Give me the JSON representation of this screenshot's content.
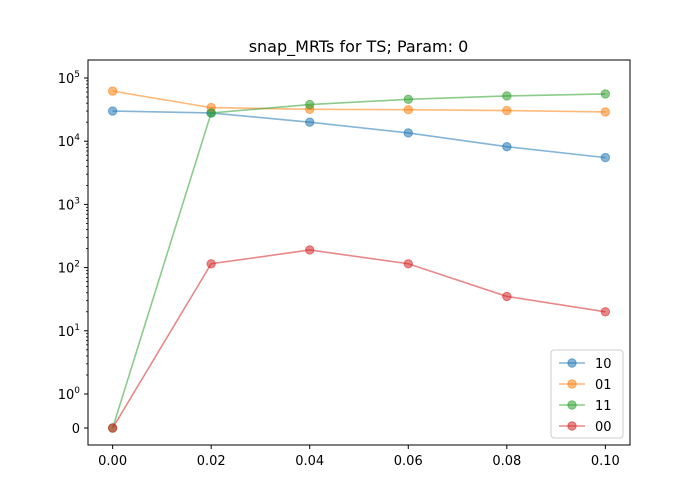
{
  "chart_data": {
    "type": "line",
    "title": "snap_MRTs for TS; Param: 0",
    "xlabel": "",
    "ylabel": "",
    "x": [
      0.0,
      0.02,
      0.04,
      0.06,
      0.08,
      0.1
    ],
    "x_tick_labels": [
      "0.00",
      "0.02",
      "0.04",
      "0.06",
      "0.08",
      "0.10"
    ],
    "xlim": [
      -0.005,
      0.105
    ],
    "y_scale": "symlog",
    "y_linthresh": 1,
    "y_tick_labels": [
      {
        "value": 0,
        "base": "0",
        "exp": ""
      },
      {
        "value": 1,
        "base": "10",
        "exp": "0"
      },
      {
        "value": 10,
        "base": "10",
        "exp": "1"
      },
      {
        "value": 100,
        "base": "10",
        "exp": "2"
      },
      {
        "value": 1000,
        "base": "10",
        "exp": "3"
      },
      {
        "value": 10000,
        "base": "10",
        "exp": "4"
      },
      {
        "value": 100000,
        "base": "10",
        "exp": "5"
      }
    ],
    "grid": false,
    "legend_position": "lower-right",
    "series": [
      {
        "name": "10",
        "color": "#1f77b4",
        "values": [
          30000,
          28000,
          20000,
          13500,
          8200,
          5500
        ]
      },
      {
        "name": "01",
        "color": "#ff7f0e",
        "values": [
          62000,
          34000,
          32000,
          31500,
          30500,
          29000
        ]
      },
      {
        "name": "11",
        "color": "#2ca02c",
        "values": [
          0,
          28000,
          38000,
          46000,
          52000,
          56000
        ]
      },
      {
        "name": "00",
        "color": "#d62728",
        "values": [
          0,
          115,
          190,
          115,
          35,
          20
        ]
      }
    ]
  }
}
